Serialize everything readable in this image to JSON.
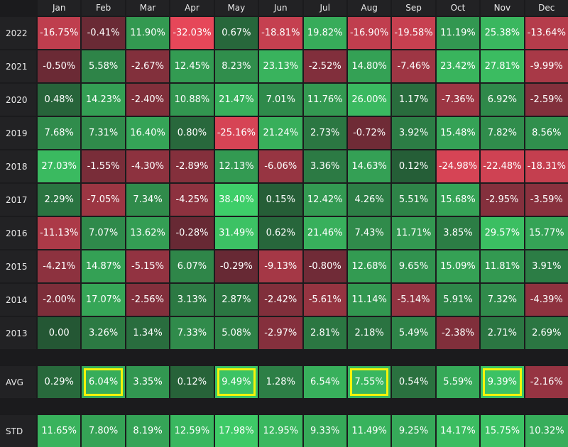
{
  "chart_data": {
    "type": "heatmap",
    "columns": [
      "Jan",
      "Feb",
      "Mar",
      "Apr",
      "May",
      "Jun",
      "Jul",
      "Aug",
      "Sep",
      "Oct",
      "Nov",
      "Dec"
    ],
    "rows": [
      {
        "label": "2022",
        "values": [
          -16.75,
          -0.41,
          11.9,
          -32.03,
          0.67,
          -18.81,
          19.82,
          -16.9,
          -19.58,
          11.19,
          25.38,
          -13.64
        ],
        "text": [
          "-16.75%",
          "-0.41%",
          "11.90%",
          "-32.03%",
          "0.67%",
          "-18.81%",
          "19.82%",
          "-16.90%",
          "-19.58%",
          "11.19%",
          "25.38%",
          "-13.64%"
        ]
      },
      {
        "label": "2021",
        "values": [
          -0.5,
          5.58,
          -2.67,
          12.45,
          8.23,
          23.13,
          -2.52,
          14.8,
          -7.46,
          23.42,
          27.81,
          -9.99
        ],
        "text": [
          "-0.50%",
          "5.58%",
          "-2.67%",
          "12.45%",
          "8.23%",
          "23.13%",
          "-2.52%",
          "14.80%",
          "-7.46%",
          "23.42%",
          "27.81%",
          "-9.99%"
        ]
      },
      {
        "label": "2020",
        "values": [
          0.48,
          14.23,
          -2.4,
          10.88,
          21.47,
          7.01,
          11.76,
          26.0,
          1.17,
          -7.36,
          6.92,
          -2.59
        ],
        "text": [
          "0.48%",
          "14.23%",
          "-2.40%",
          "10.88%",
          "21.47%",
          "7.01%",
          "11.76%",
          "26.00%",
          "1.17%",
          "-7.36%",
          "6.92%",
          "-2.59%"
        ]
      },
      {
        "label": "2019",
        "values": [
          7.68,
          7.31,
          16.4,
          0.8,
          -25.16,
          21.24,
          2.73,
          -0.72,
          3.92,
          15.48,
          7.82,
          8.56
        ],
        "text": [
          "7.68%",
          "7.31%",
          "16.40%",
          "0.80%",
          "-25.16%",
          "21.24%",
          "2.73%",
          "-0.72%",
          "3.92%",
          "15.48%",
          "7.82%",
          "8.56%"
        ]
      },
      {
        "label": "2018",
        "values": [
          27.03,
          -1.55,
          -4.3,
          -2.89,
          12.13,
          -6.06,
          3.36,
          14.63,
          0.12,
          -24.98,
          -22.48,
          -18.31
        ],
        "text": [
          "27.03%",
          "-1.55%",
          "-4.30%",
          "-2.89%",
          "12.13%",
          "-6.06%",
          "3.36%",
          "14.63%",
          "0.12%",
          "-24.98%",
          "-22.48%",
          "-18.31%"
        ]
      },
      {
        "label": "2017",
        "values": [
          2.29,
          -7.05,
          7.34,
          -4.25,
          38.4,
          0.15,
          12.42,
          4.26,
          5.51,
          15.68,
          -2.95,
          -3.59
        ],
        "text": [
          "2.29%",
          "-7.05%",
          "7.34%",
          "-4.25%",
          "38.40%",
          "0.15%",
          "12.42%",
          "4.26%",
          "5.51%",
          "15.68%",
          "-2.95%",
          "-3.59%"
        ]
      },
      {
        "label": "2016",
        "values": [
          -11.13,
          7.07,
          13.62,
          -0.28,
          31.49,
          0.62,
          21.46,
          7.43,
          11.71,
          3.85,
          29.57,
          15.77
        ],
        "text": [
          "-11.13%",
          "7.07%",
          "13.62%",
          "-0.28%",
          "31.49%",
          "0.62%",
          "21.46%",
          "7.43%",
          "11.71%",
          "3.85%",
          "29.57%",
          "15.77%"
        ]
      },
      {
        "label": "2015",
        "values": [
          -4.21,
          14.87,
          -5.15,
          6.07,
          -0.29,
          -9.13,
          -0.8,
          12.68,
          9.65,
          15.09,
          11.81,
          3.91
        ],
        "text": [
          "-4.21%",
          "14.87%",
          "-5.15%",
          "6.07%",
          "-0.29%",
          "-9.13%",
          "-0.80%",
          "12.68%",
          "9.65%",
          "15.09%",
          "11.81%",
          "3.91%"
        ]
      },
      {
        "label": "2014",
        "values": [
          -2.0,
          17.07,
          -2.56,
          3.13,
          2.87,
          -2.42,
          -5.61,
          11.14,
          -5.14,
          5.91,
          7.32,
          -4.39
        ],
        "text": [
          "-2.00%",
          "17.07%",
          "-2.56%",
          "3.13%",
          "2.87%",
          "-2.42%",
          "-5.61%",
          "11.14%",
          "-5.14%",
          "5.91%",
          "7.32%",
          "-4.39%"
        ]
      },
      {
        "label": "2013",
        "values": [
          0.0,
          3.26,
          1.34,
          7.33,
          5.08,
          -2.97,
          2.81,
          2.18,
          5.49,
          -2.38,
          2.71,
          2.69
        ],
        "text": [
          "0.00",
          "3.26%",
          "1.34%",
          "7.33%",
          "5.08%",
          "-2.97%",
          "2.81%",
          "2.18%",
          "5.49%",
          "-2.38%",
          "2.71%",
          "2.69%"
        ]
      }
    ],
    "avg": {
      "label": "AVG",
      "values": [
        0.29,
        6.04,
        3.35,
        0.12,
        9.49,
        1.28,
        6.54,
        7.55,
        0.54,
        5.59,
        9.39,
        -2.16
      ],
      "text": [
        "0.29%",
        "6.04%",
        "3.35%",
        "0.12%",
        "9.49%",
        "1.28%",
        "6.54%",
        "7.55%",
        "0.54%",
        "5.59%",
        "9.39%",
        "-2.16%"
      ],
      "highlighted": [
        "Feb",
        "May",
        "Aug",
        "Nov"
      ]
    },
    "std": {
      "label": "STD",
      "values": [
        11.65,
        7.8,
        8.19,
        12.59,
        17.98,
        12.95,
        9.33,
        11.49,
        9.25,
        14.17,
        15.75,
        10.32
      ],
      "text": [
        "11.65%",
        "7.80%",
        "8.19%",
        "12.59%",
        "17.98%",
        "12.95%",
        "9.33%",
        "11.49%",
        "9.25%",
        "14.17%",
        "15.75%",
        "10.32%"
      ]
    },
    "colors": {
      "positive_low": "#245734",
      "positive_high": "#3fd06a",
      "negative_low": "#5a2630",
      "negative_high": "#e8485a",
      "highlight_border": "#f4f40a",
      "background": "#1b1b1d"
    }
  }
}
